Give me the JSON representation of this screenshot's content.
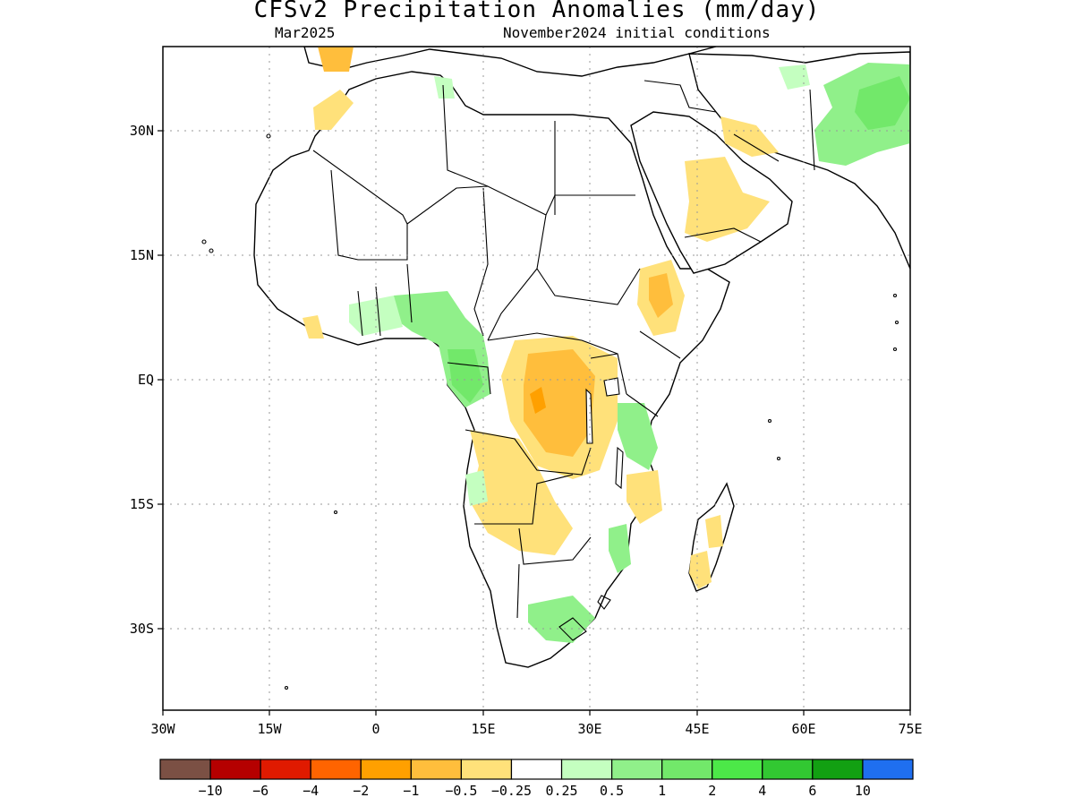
{
  "title": "CFSv2 Precipitation Anomalies (mm/day)",
  "subtitle_left": "Mar2025",
  "subtitle_right": "November2024 initial conditions",
  "axes": {
    "lat_ticks": [
      "30N",
      "15N",
      "EQ",
      "15S",
      "30S"
    ],
    "lon_ticks": [
      "30W",
      "15W",
      "0",
      "15E",
      "30E",
      "45E",
      "60E",
      "75E"
    ],
    "gridlines": "dotted"
  },
  "colorbar": {
    "colors": [
      "#7b5044",
      "#b50000",
      "#e01a00",
      "#ff6400",
      "#ffa000",
      "#ffbe3c",
      "#ffe17a",
      "#ffffff",
      "#c4ffc0",
      "#90f08a",
      "#72e86a",
      "#4ce848",
      "#32c832",
      "#12a012",
      "#1f6ff0"
    ],
    "labels": [
      "−10",
      "−6",
      "−4",
      "−2",
      "−1",
      "−0.5",
      "−0.25",
      "0.25",
      "0.5",
      "1",
      "2",
      "4",
      "6",
      "10"
    ]
  }
}
